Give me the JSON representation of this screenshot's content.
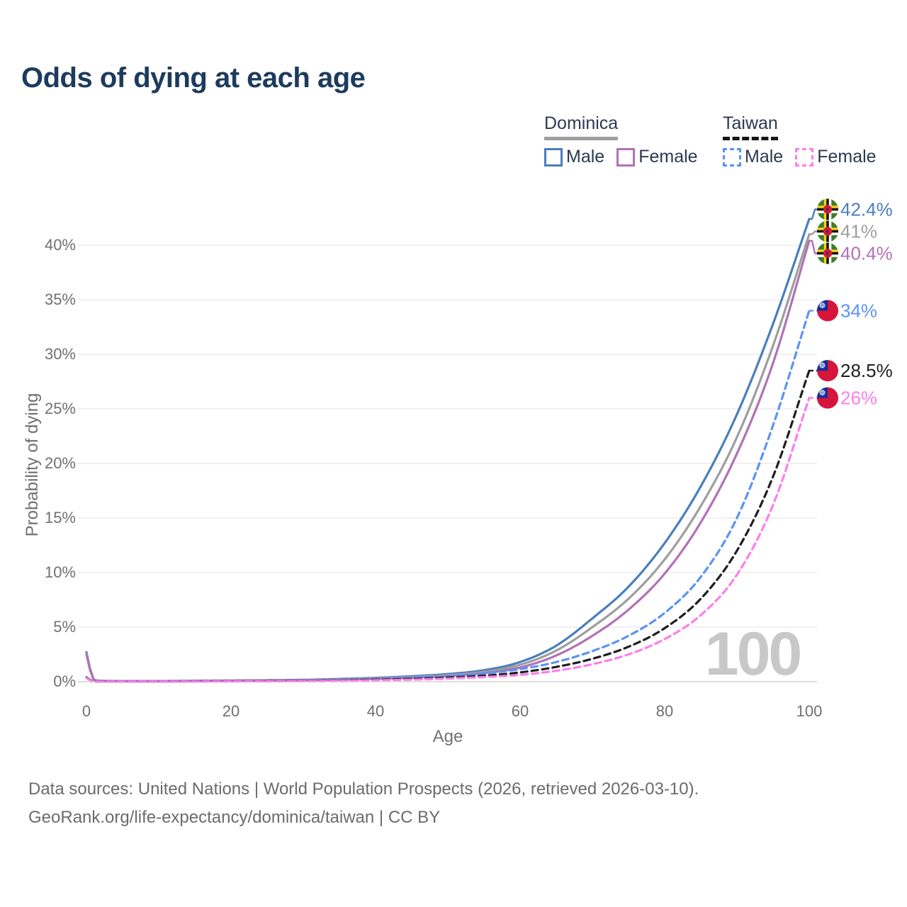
{
  "title": "Odds of dying at each age",
  "legend": {
    "groups": [
      {
        "country": "Dominica",
        "line_style": "solid",
        "line_color": "#9e9e9e",
        "items": [
          {
            "label": "Male",
            "color": "#4a7ebd",
            "style": "solid"
          },
          {
            "label": "Female",
            "color": "#b271b6",
            "style": "solid"
          }
        ]
      },
      {
        "country": "Taiwan",
        "line_style": "dashed",
        "line_color": "#141414",
        "items": [
          {
            "label": "Male",
            "color": "#5b93f5",
            "style": "dashed"
          },
          {
            "label": "Female",
            "color": "#ff7dea",
            "style": "dashed"
          }
        ]
      }
    ]
  },
  "watermark": "100",
  "footer": {
    "line1": "Data sources: United Nations | World Population Prospects (2026, retrieved 2026-03-10).",
    "line2": "GeoRank.org/life-expectancy/dominica/taiwan | CC BY"
  },
  "chart_data": {
    "type": "line",
    "title": "Odds of dying at each age",
    "xlabel": "Age",
    "ylabel": "Probability of dying",
    "x_ticks": [
      "0",
      "20",
      "40",
      "60",
      "80",
      "100"
    ],
    "y_ticks": [
      "0%",
      "5%",
      "10%",
      "15%",
      "20%",
      "25%",
      "30%",
      "35%",
      "40%"
    ],
    "xlim": [
      0,
      100
    ],
    "ylim_pct": [
      0,
      44
    ],
    "grid": "horizontal",
    "legend_position": "top-right",
    "series": [
      {
        "name": "Dominica Male",
        "country": "Dominica",
        "sex": "Male",
        "style": "solid",
        "color": "#4a7ebd",
        "flag": "dominica",
        "end_label": "42.4%",
        "end_value_pct": 42.4,
        "points": [
          [
            0,
            2.7
          ],
          [
            1,
            0.2
          ],
          [
            2,
            0.08
          ],
          [
            5,
            0.06
          ],
          [
            10,
            0.06
          ],
          [
            15,
            0.08
          ],
          [
            20,
            0.1
          ],
          [
            25,
            0.13
          ],
          [
            30,
            0.17
          ],
          [
            35,
            0.25
          ],
          [
            40,
            0.35
          ],
          [
            45,
            0.5
          ],
          [
            50,
            0.7
          ],
          [
            55,
            1.05
          ],
          [
            60,
            1.8
          ],
          [
            65,
            3.3
          ],
          [
            70,
            5.8
          ],
          [
            75,
            8.7
          ],
          [
            80,
            12.7
          ],
          [
            85,
            17.9
          ],
          [
            90,
            24.5
          ],
          [
            95,
            32.8
          ],
          [
            100,
            42.4
          ]
        ]
      },
      {
        "name": "Dominica Both sexes",
        "country": "Dominica",
        "sex": "Both sexes",
        "style": "solid",
        "color": "#9e9e9e",
        "flag": "dominica",
        "end_label": "41%",
        "end_value_pct": 41,
        "points": [
          [
            0,
            2.6
          ],
          [
            1,
            0.18
          ],
          [
            2,
            0.07
          ],
          [
            5,
            0.05
          ],
          [
            10,
            0.05
          ],
          [
            15,
            0.07
          ],
          [
            20,
            0.09
          ],
          [
            25,
            0.11
          ],
          [
            30,
            0.15
          ],
          [
            35,
            0.21
          ],
          [
            40,
            0.3
          ],
          [
            45,
            0.42
          ],
          [
            50,
            0.6
          ],
          [
            55,
            0.9
          ],
          [
            60,
            1.55
          ],
          [
            65,
            2.85
          ],
          [
            70,
            5.0
          ],
          [
            75,
            7.6
          ],
          [
            80,
            11.2
          ],
          [
            85,
            16.1
          ],
          [
            90,
            22.4
          ],
          [
            95,
            30.8
          ],
          [
            100,
            41
          ]
        ]
      },
      {
        "name": "Dominica Female",
        "country": "Dominica",
        "sex": "Female",
        "style": "solid",
        "color": "#b271b6",
        "flag": "dominica",
        "end_label": "40.4%",
        "end_value_pct": 40.4,
        "points": [
          [
            0,
            2.5
          ],
          [
            1,
            0.16
          ],
          [
            2,
            0.06
          ],
          [
            5,
            0.04
          ],
          [
            10,
            0.04
          ],
          [
            15,
            0.06
          ],
          [
            20,
            0.08
          ],
          [
            25,
            0.1
          ],
          [
            30,
            0.13
          ],
          [
            35,
            0.18
          ],
          [
            40,
            0.26
          ],
          [
            45,
            0.36
          ],
          [
            50,
            0.52
          ],
          [
            55,
            0.78
          ],
          [
            60,
            1.3
          ],
          [
            65,
            2.4
          ],
          [
            70,
            4.2
          ],
          [
            75,
            6.6
          ],
          [
            80,
            9.9
          ],
          [
            85,
            14.6
          ],
          [
            90,
            20.9
          ],
          [
            95,
            29.2
          ],
          [
            100,
            40.4
          ]
        ]
      },
      {
        "name": "Taiwan Male",
        "country": "Taiwan",
        "sex": "Male",
        "style": "dashed",
        "color": "#5b93f5",
        "flag": "taiwan",
        "end_label": "34%",
        "end_value_pct": 34,
        "points": [
          [
            0,
            0.4
          ],
          [
            1,
            0.03
          ],
          [
            5,
            0.02
          ],
          [
            10,
            0.02
          ],
          [
            15,
            0.04
          ],
          [
            20,
            0.06
          ],
          [
            25,
            0.08
          ],
          [
            30,
            0.11
          ],
          [
            35,
            0.16
          ],
          [
            40,
            0.24
          ],
          [
            45,
            0.35
          ],
          [
            50,
            0.5
          ],
          [
            55,
            0.75
          ],
          [
            60,
            1.15
          ],
          [
            65,
            1.8
          ],
          [
            70,
            2.8
          ],
          [
            75,
            4.2
          ],
          [
            80,
            6.3
          ],
          [
            85,
            9.6
          ],
          [
            90,
            15.0
          ],
          [
            95,
            23.5
          ],
          [
            100,
            34
          ]
        ]
      },
      {
        "name": "Taiwan Both sexes",
        "country": "Taiwan",
        "sex": "Both sexes",
        "style": "dashed",
        "color": "#1f1f1f",
        "flag": "taiwan",
        "end_label": "28.5%",
        "end_value_pct": 28.5,
        "points": [
          [
            0,
            0.37
          ],
          [
            1,
            0.025
          ],
          [
            5,
            0.015
          ],
          [
            10,
            0.015
          ],
          [
            15,
            0.03
          ],
          [
            20,
            0.045
          ],
          [
            25,
            0.06
          ],
          [
            30,
            0.08
          ],
          [
            35,
            0.12
          ],
          [
            40,
            0.18
          ],
          [
            45,
            0.26
          ],
          [
            50,
            0.38
          ],
          [
            55,
            0.55
          ],
          [
            60,
            0.85
          ],
          [
            65,
            1.35
          ],
          [
            70,
            2.1
          ],
          [
            75,
            3.2
          ],
          [
            80,
            4.9
          ],
          [
            85,
            7.6
          ],
          [
            90,
            12.0
          ],
          [
            95,
            18.8
          ],
          [
            100,
            28.5
          ]
        ]
      },
      {
        "name": "Taiwan Female",
        "country": "Taiwan",
        "sex": "Female",
        "style": "dashed",
        "color": "#ff7dea",
        "flag": "taiwan",
        "end_label": "26%",
        "end_value_pct": 26,
        "points": [
          [
            0,
            0.33
          ],
          [
            1,
            0.02
          ],
          [
            5,
            0.01
          ],
          [
            10,
            0.01
          ],
          [
            15,
            0.02
          ],
          [
            20,
            0.03
          ],
          [
            25,
            0.045
          ],
          [
            30,
            0.06
          ],
          [
            35,
            0.09
          ],
          [
            40,
            0.13
          ],
          [
            45,
            0.19
          ],
          [
            50,
            0.28
          ],
          [
            55,
            0.42
          ],
          [
            60,
            0.62
          ],
          [
            65,
            1.0
          ],
          [
            70,
            1.6
          ],
          [
            75,
            2.5
          ],
          [
            80,
            3.9
          ],
          [
            85,
            6.1
          ],
          [
            90,
            9.8
          ],
          [
            95,
            16.2
          ],
          [
            100,
            26
          ]
        ]
      }
    ]
  }
}
